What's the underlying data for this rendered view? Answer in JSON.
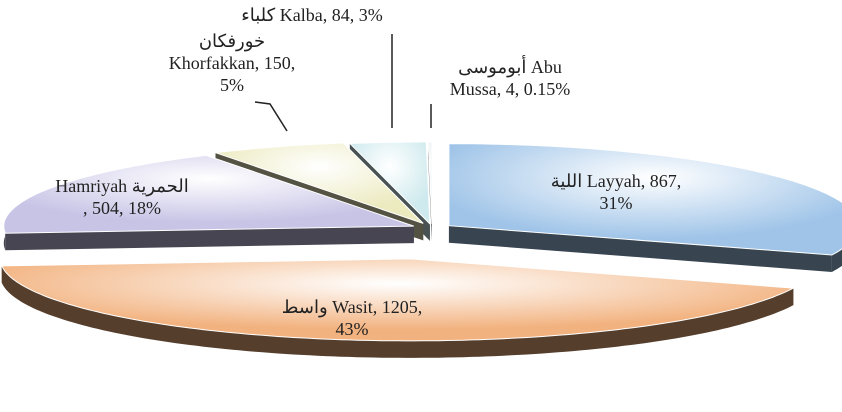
{
  "chart_data": {
    "type": "pie3d",
    "values": [
      867,
      1205,
      504,
      150,
      84,
      4
    ],
    "value_labels": [
      "اللية Layyah, 867,\n31%",
      "واسط Wasit, 1205,\n43%",
      "Hamriyah الحمرية\n, 504, 18%",
      "خورفكان\nKhorfakkan, 150,\n5%",
      "كلباء Kalba, 84, 3%",
      "أبوموسى Abu\nMussa, 4, 0.15%"
    ],
    "colors": [
      "#9fc4e8",
      "#f2b27f",
      "#c8c4e6",
      "#eceabf",
      "#cfeaee",
      "#e6eef0"
    ]
  }
}
